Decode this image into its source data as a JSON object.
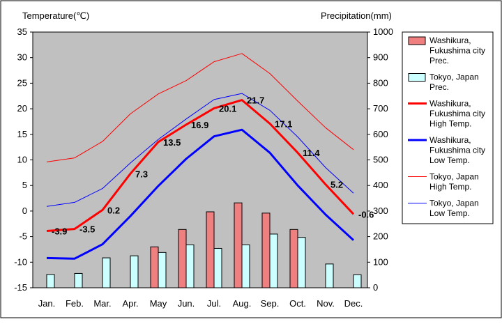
{
  "chart_data": {
    "type": "bar+line",
    "left_axis_title": "Temperature(℃)",
    "right_axis_title": "Precipitation(mm)",
    "left_ylim": [
      -15,
      35
    ],
    "left_ticks": [
      "35",
      "30",
      "25",
      "20",
      "15",
      "10",
      "5",
      "0",
      "-5",
      "-10",
      "-15"
    ],
    "right_ylim": [
      0,
      1000
    ],
    "right_ticks": [
      "1000",
      "900",
      "800",
      "700",
      "600",
      "500",
      "400",
      "300",
      "200",
      "100",
      "0"
    ],
    "categories": [
      "Jan.",
      "Feb.",
      "Mar.",
      "Apr.",
      "May",
      "Jun.",
      "Jul.",
      "Aug.",
      "Sep.",
      "Oct.",
      "Nov.",
      "Dec."
    ],
    "grid": false,
    "legend_position": "right",
    "bar_series": [
      {
        "name": "Washikura, Fukushima city Prec.",
        "legend_lines": [
          "Washikura,",
          "Fukushima city",
          "Prec."
        ],
        "color": "#f08080",
        "values": [
          null,
          null,
          null,
          null,
          160,
          228,
          297,
          332,
          292,
          228,
          null,
          null
        ]
      },
      {
        "name": "Tokyo, Japan Prec.",
        "legend_lines": [
          "Tokyo, Japan",
          "Prec."
        ],
        "color": "#ccffff",
        "values": [
          52,
          56,
          117,
          125,
          138,
          168,
          154,
          168,
          210,
          197,
          93,
          51
        ]
      }
    ],
    "line_series": [
      {
        "name": "Washikura, Fukushima city High Temp.",
        "legend_lines": [
          "Washikura,",
          "Fukushima city",
          "High Temp."
        ],
        "color": "#ff0000",
        "width": 3,
        "values": [
          -3.9,
          -3.5,
          0.2,
          7.3,
          13.5,
          16.9,
          20.1,
          21.7,
          17.1,
          11.4,
          5.2,
          -0.6
        ],
        "data_labels": [
          "-3.9",
          "-3.5",
          "0.2",
          "7.3",
          "13.5",
          "16.9",
          "20.1",
          "21.7",
          "17.1",
          "11.4",
          "5.2",
          "-0.6"
        ]
      },
      {
        "name": "Washikura, Fukushima city Low Temp.",
        "legend_lines": [
          "Washikura,",
          "Fukushima city",
          "Low Temp."
        ],
        "color": "#0000ff",
        "width": 3,
        "values": [
          -9.2,
          -9.3,
          -6.5,
          -1.0,
          4.9,
          10.2,
          14.6,
          15.9,
          11.4,
          5.0,
          -0.7,
          -5.7
        ]
      },
      {
        "name": "Tokyo, Japan High Temp.",
        "legend_lines": [
          "Tokyo, Japan",
          "High Temp."
        ],
        "color": "#ff0000",
        "width": 1,
        "values": [
          9.6,
          10.4,
          13.6,
          19.0,
          22.9,
          25.5,
          29.2,
          30.8,
          26.9,
          21.5,
          16.3,
          12.0
        ]
      },
      {
        "name": "Tokyo, Japan Low Temp.",
        "legend_lines": [
          "Tokyo, Japan",
          "Low Temp."
        ],
        "color": "#0000ff",
        "width": 1,
        "values": [
          0.9,
          1.7,
          4.4,
          9.4,
          14.0,
          18.0,
          21.8,
          23.0,
          19.7,
          14.5,
          8.5,
          3.5
        ]
      }
    ]
  }
}
